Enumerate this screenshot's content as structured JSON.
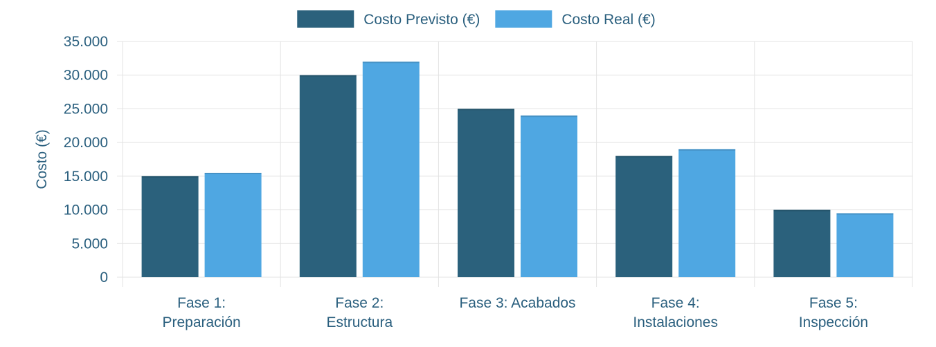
{
  "chart_data": {
    "type": "bar",
    "categories": [
      [
        "Fase 1:",
        "Preparación"
      ],
      [
        "Fase 2:",
        "Estructura"
      ],
      [
        "Fase 3: Acabados"
      ],
      [
        "Fase 4:",
        "Instalaciones"
      ],
      [
        "Fase 5:",
        "Inspección"
      ]
    ],
    "series": [
      {
        "name": "Costo Previsto (€)",
        "color": "#2b617c",
        "values": [
          15000,
          30000,
          25000,
          18000,
          10000
        ]
      },
      {
        "name": "Costo Real (€)",
        "color": "#4fa7e2",
        "values": [
          15500,
          32000,
          24000,
          19000,
          9500
        ]
      }
    ],
    "title": "",
    "xlabel": "",
    "ylabel": "Costo (€)",
    "ylim": [
      0,
      35000
    ],
    "yticks": [
      0,
      5000,
      10000,
      15000,
      20000,
      25000,
      30000,
      35000
    ],
    "ytick_labels": [
      "0",
      "5.000",
      "10.000",
      "15.000",
      "20.000",
      "25.000",
      "30.000",
      "35.000"
    ],
    "grid": true,
    "legend_position": "top-center"
  }
}
